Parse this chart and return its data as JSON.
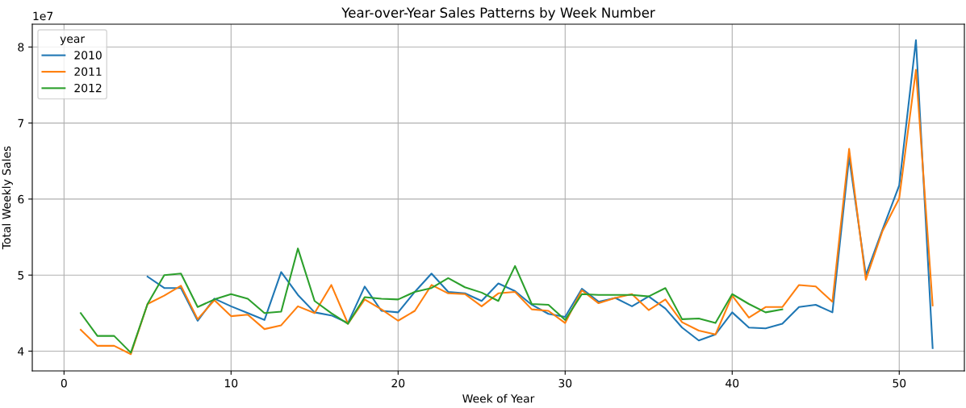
{
  "chart_data": {
    "type": "line",
    "title": "Year-over-Year Sales Patterns by Week Number",
    "xlabel": "Week of Year",
    "ylabel": "Total Weekly Sales",
    "legend_title": "year",
    "annotations": [
      "1e7"
    ],
    "series": [
      {
        "name": "2010",
        "color": "#1f77b4",
        "x": [
          5,
          6,
          7,
          8,
          9,
          10,
          11,
          12,
          13,
          14,
          15,
          16,
          17,
          18,
          19,
          20,
          21,
          22,
          23,
          24,
          25,
          26,
          27,
          28,
          29,
          30,
          31,
          32,
          33,
          34,
          35,
          36,
          37,
          38,
          39,
          40,
          41,
          42,
          43,
          44,
          45,
          46,
          47,
          48,
          49,
          50,
          51,
          52
        ],
        "values": [
          4.98,
          4.83,
          4.83,
          4.4,
          4.69,
          4.59,
          4.5,
          4.41,
          5.04,
          4.74,
          4.51,
          4.47,
          4.37,
          4.85,
          4.53,
          4.51,
          4.78,
          5.02,
          4.78,
          4.76,
          4.66,
          4.89,
          4.79,
          4.61,
          4.49,
          4.45,
          4.82,
          4.65,
          4.7,
          4.59,
          4.72,
          4.56,
          4.31,
          4.14,
          4.22,
          4.51,
          4.31,
          4.3,
          4.36,
          4.58,
          4.61,
          4.51,
          6.55,
          5.0,
          5.6,
          6.18,
          8.09,
          4.04
        ]
      },
      {
        "name": "2011",
        "color": "#ff7f0e",
        "x": [
          1,
          2,
          3,
          4,
          5,
          6,
          7,
          8,
          9,
          10,
          11,
          12,
          13,
          14,
          15,
          16,
          17,
          18,
          19,
          20,
          21,
          22,
          23,
          24,
          25,
          26,
          27,
          28,
          29,
          30,
          31,
          32,
          33,
          34,
          35,
          36,
          37,
          38,
          39,
          40,
          41,
          42,
          43,
          44,
          45,
          46,
          47,
          48,
          49,
          50,
          51,
          52
        ],
        "values": [
          4.28,
          4.07,
          4.07,
          3.96,
          4.62,
          4.73,
          4.86,
          4.42,
          4.67,
          4.46,
          4.48,
          4.29,
          4.34,
          4.59,
          4.5,
          4.87,
          4.36,
          4.68,
          4.55,
          4.4,
          4.53,
          4.87,
          4.76,
          4.75,
          4.59,
          4.76,
          4.78,
          4.55,
          4.53,
          4.37,
          4.8,
          4.63,
          4.7,
          4.75,
          4.54,
          4.68,
          4.38,
          4.27,
          4.22,
          4.73,
          4.44,
          4.58,
          4.58,
          4.87,
          4.85,
          4.65,
          6.66,
          4.94,
          5.58,
          6.01,
          7.7,
          4.6
        ]
      },
      {
        "name": "2012",
        "color": "#2ca02c",
        "x": [
          1,
          2,
          3,
          4,
          5,
          6,
          7,
          8,
          9,
          10,
          11,
          12,
          13,
          14,
          15,
          16,
          17,
          18,
          19,
          20,
          21,
          22,
          23,
          24,
          25,
          26,
          27,
          28,
          29,
          30,
          31,
          32,
          33,
          34,
          35,
          36,
          37,
          38,
          39,
          40,
          41,
          42,
          43
        ],
        "values": [
          4.5,
          4.2,
          4.2,
          3.98,
          4.62,
          5.0,
          5.02,
          4.58,
          4.68,
          4.75,
          4.69,
          4.5,
          4.52,
          5.35,
          4.66,
          4.5,
          4.36,
          4.71,
          4.69,
          4.68,
          4.78,
          4.83,
          4.96,
          4.84,
          4.77,
          4.66,
          5.12,
          4.62,
          4.61,
          4.41,
          4.75,
          4.74,
          4.74,
          4.74,
          4.72,
          4.83,
          4.42,
          4.43,
          4.37,
          4.75,
          4.62,
          4.51,
          4.55
        ]
      }
    ],
    "xlim": [
      -1.9,
      53.9
    ],
    "xticks": [
      0,
      10,
      20,
      30,
      40,
      50
    ],
    "ylim": [
      3.74,
      8.3
    ],
    "yticks": [
      4,
      5,
      6,
      7,
      8
    ],
    "grid": true,
    "legend": "top left",
    "marker": "none",
    "line_style": "solid"
  }
}
